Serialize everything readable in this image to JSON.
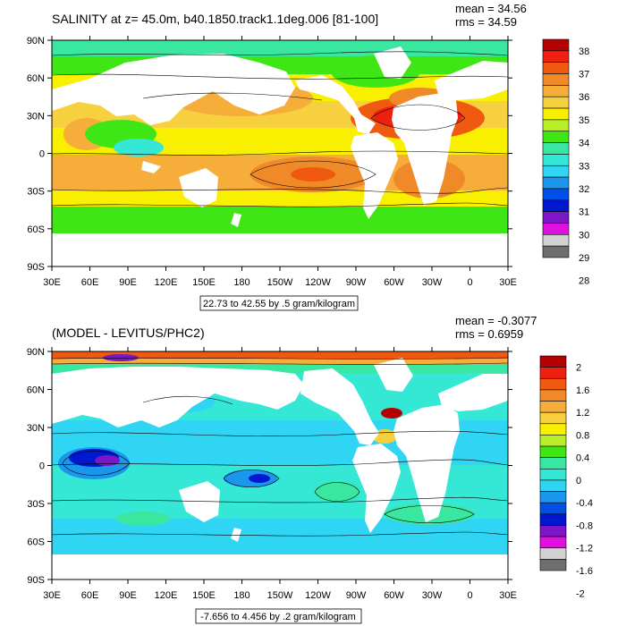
{
  "panels": [
    {
      "title": "SALINITY at z=  45.0m, b40.1850.track1.1deg.006 [81-100]",
      "mean": "mean = 34.56",
      "rms": "rms = 34.59",
      "range_label": "22.73 to 42.55 by .5 gram/kilogram",
      "lat_labels": [
        "90N",
        "60N",
        "30N",
        "0",
        "30S",
        "60S",
        "90S"
      ],
      "lon_labels": [
        "30E",
        "60E",
        "90E",
        "120E",
        "150E",
        "180",
        "150W",
        "120W",
        "90W",
        "60W",
        "30W",
        "0",
        "30E"
      ],
      "colorbar": {
        "labels": [
          "38",
          "37",
          "36",
          "35",
          "34",
          "33",
          "32",
          "31",
          "30",
          "29",
          "28"
        ],
        "colors": [
          "#b30000",
          "#ef2010",
          "#f05a10",
          "#f08a28",
          "#f6ad3a",
          "#f7d040",
          "#f8f000",
          "#b9ef29",
          "#3ee616",
          "#3ae7a0",
          "#35e7d5",
          "#2fd5f2",
          "#1a96ec",
          "#0050e8",
          "#0018cf",
          "#7d15c9",
          "#e011e0",
          "#d2d2d2",
          "#6e6e6e"
        ]
      }
    },
    {
      "title": "(MODEL - LEVITUS/PHC2)",
      "mean": "mean = -0.3077",
      "rms": "rms = 0.6959",
      "range_label": "-7.656 to 4.456 by .2 gram/kilogram",
      "lat_labels": [
        "90N",
        "60N",
        "30N",
        "0",
        "30S",
        "60S",
        "90S"
      ],
      "lon_labels": [
        "30E",
        "60E",
        "90E",
        "120E",
        "150E",
        "180",
        "150W",
        "120W",
        "90W",
        "60W",
        "30W",
        "0",
        "30E"
      ],
      "colorbar": {
        "labels": [
          "2",
          "1.6",
          "1.2",
          "0.8",
          "0.4",
          "0",
          "-0.4",
          "-0.8",
          "-1.2",
          "-1.6",
          "-2"
        ],
        "colors": [
          "#b30000",
          "#ef2010",
          "#f05a10",
          "#f08a28",
          "#f6ad3a",
          "#f7d040",
          "#f8f000",
          "#b9ef29",
          "#3ee616",
          "#3ae7a0",
          "#35e7d5",
          "#2fd5f2",
          "#1a96ec",
          "#0050e8",
          "#0018cf",
          "#7d15c9",
          "#e011e0",
          "#d2d2d2",
          "#6e6e6e"
        ]
      }
    }
  ]
}
